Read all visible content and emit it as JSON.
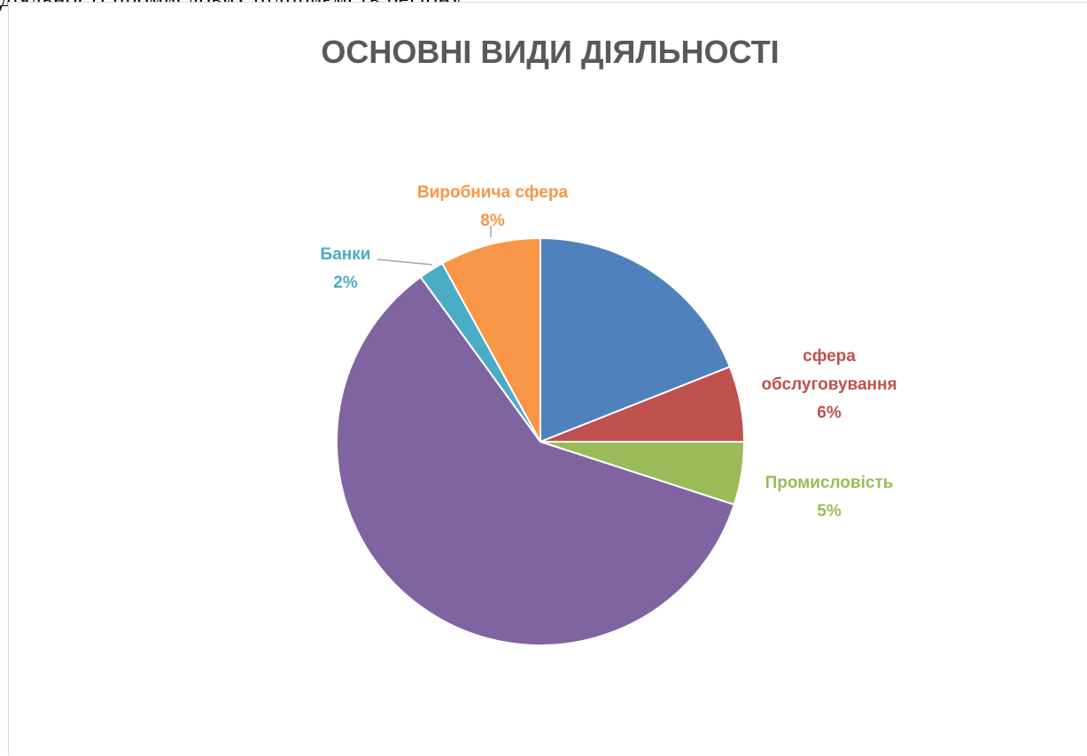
{
  "page": {
    "top_text_fragment": "діяльності промислових підприємств регіону"
  },
  "chart_data": {
    "type": "pie",
    "title": "ОСНОВНІ ВИДИ ДІЯЛЬНОСТІ",
    "start_angle_deg": 0,
    "direction": "clockwise",
    "slices": [
      {
        "label": "",
        "value": 19,
        "color": "#4F81BD",
        "label_lines": []
      },
      {
        "label": "сфера обслуговування",
        "value": 6,
        "color": "#C0504D",
        "label_lines": [
          "сфера",
          "обслуговування",
          "6%"
        ]
      },
      {
        "label": "Промисловість",
        "value": 5,
        "color": "#9BBB59",
        "label_lines": [
          "Промисловість",
          "5%"
        ]
      },
      {
        "label": "",
        "value": 60,
        "color": "#8064A2",
        "label_lines": []
      },
      {
        "label": "Банки",
        "value": 2,
        "color": "#4BACC6",
        "label_lines": [
          "Банки",
          "2%"
        ]
      },
      {
        "label": "Виробнича сфера",
        "value": 8,
        "color": "#F79646",
        "label_lines": [
          "Виробнича сфера",
          "8%"
        ]
      }
    ]
  }
}
